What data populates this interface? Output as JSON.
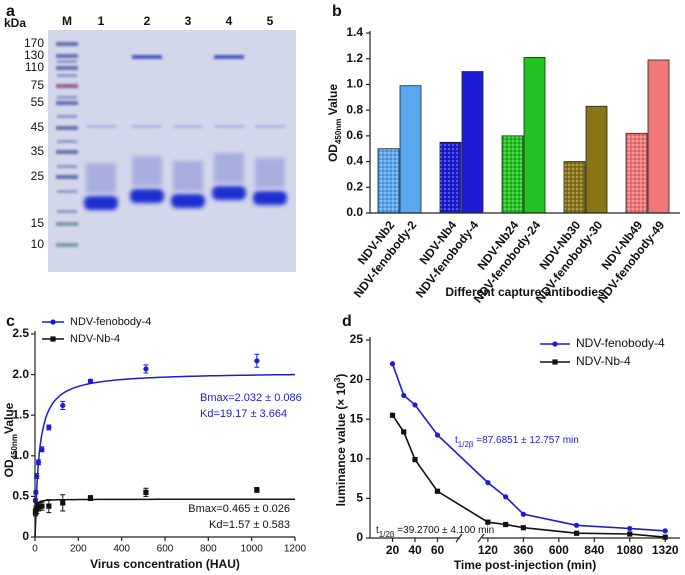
{
  "gel": {
    "panel": "a",
    "unit": "kDa",
    "lanes": [
      "M",
      "1",
      "2",
      "3",
      "4",
      "5"
    ],
    "markers": [
      "170",
      "130",
      "110",
      "75",
      "55",
      "45",
      "35",
      "25",
      "15",
      "10"
    ]
  },
  "chart_data": [
    {
      "panel": "b",
      "type": "bar",
      "categories": [
        "NDV-Nb2",
        "NDV-fenobody-2",
        "NDV-Nb4",
        "NDV-fenobody-4",
        "NDV-Nb24",
        "NDV-fenobody-24",
        "NDV-Nb30",
        "NDV-fenobody-30",
        "NDV-Nb49",
        "NDV-fenobody-49"
      ],
      "values": [
        0.5,
        0.99,
        0.55,
        1.1,
        0.6,
        1.21,
        0.4,
        0.83,
        0.62,
        1.19
      ],
      "colors": [
        "#5aa8f0",
        "#5aa8f0",
        "#1c1cd6",
        "#1c1cd6",
        "#22c322",
        "#22c322",
        "#8a7618",
        "#8a7618",
        "#f07878",
        "#f07878"
      ],
      "hatched": [
        true,
        false,
        true,
        false,
        true,
        false,
        true,
        false,
        true,
        false
      ],
      "ylabel": {
        "main": "OD",
        "sub": "450nm",
        "rest": " Value"
      },
      "xlabel": "Different capture antibodies",
      "ylim": [
        0,
        1.4
      ],
      "yticks": [
        {
          "value": 0,
          "label": "0.0"
        },
        0.2,
        0.4,
        0.6,
        0.8,
        {
          "value": 1,
          "label": "1.0"
        },
        1.2,
        1.4
      ]
    },
    {
      "panel": "c",
      "type": "scatter",
      "series": [
        {
          "name": "NDV-fenobody-4",
          "color": "#1c1cd6",
          "marker": "circle",
          "x": [
            2,
            4,
            8,
            16,
            32,
            64,
            128,
            256,
            512,
            1024
          ],
          "values": [
            0.45,
            0.55,
            0.75,
            0.92,
            1.08,
            1.35,
            1.62,
            1.92,
            2.07,
            2.17
          ],
          "errors": [
            0.02,
            0.02,
            0.03,
            0.03,
            0.03,
            0.03,
            0.05,
            0.02,
            0.05,
            0.08
          ],
          "fit": {
            "bmax": 2.032,
            "kd": 19.17
          },
          "annotation": [
            "Bmax=2.032 ± 0.086",
            "Kd=19.17 ± 3.664"
          ]
        },
        {
          "name": "NDV-Nb-4",
          "color": "#111111",
          "marker": "square",
          "x": [
            2,
            4,
            8,
            16,
            32,
            64,
            128,
            256,
            512,
            1024
          ],
          "values": [
            0.3,
            0.33,
            0.35,
            0.37,
            0.38,
            0.38,
            0.42,
            0.48,
            0.55,
            0.58
          ],
          "errors": [
            0.04,
            0.05,
            0.06,
            0.05,
            0.05,
            0.08,
            0.1,
            0.03,
            0.05,
            0.03
          ],
          "fit": {
            "bmax": 0.465,
            "kd": 1.57
          },
          "annotation": [
            "Bmax=0.465 ± 0.026",
            "Kd=1.57 ± 0.583"
          ]
        }
      ],
      "ylabel": {
        "main": "OD",
        "sub": "450nm",
        "rest": "Value"
      },
      "xlabel": "Virus concentration (HAU)",
      "legend": "upper-left",
      "xlim": [
        0,
        1200
      ],
      "xticks": [
        0,
        200,
        400,
        600,
        800,
        1000,
        1200
      ],
      "ylim": [
        0,
        2.5
      ],
      "yticks": [
        0,
        0.5,
        {
          "value": 1,
          "label": "1.0"
        },
        1.5,
        {
          "value": 2,
          "label": "2.0"
        },
        2.5
      ]
    },
    {
      "panel": "d",
      "type": "line",
      "x": [
        20,
        30,
        40,
        60,
        120,
        240,
        360,
        720,
        1080,
        1320
      ],
      "series": [
        {
          "name": "NDV-fenobody-4",
          "color": "#1c1cd6",
          "marker": "circle",
          "values": [
            22,
            18,
            16.8,
            13,
            7.0,
            5.2,
            3.0,
            1.6,
            1.2,
            0.9
          ],
          "annotation": {
            "t": "t",
            "sub": "1/2β",
            "rest": " =87.6851 ± 12.757 min"
          }
        },
        {
          "name": "NDV-Nb-4",
          "color": "#111111",
          "marker": "square",
          "values": [
            15.5,
            13.4,
            9.9,
            5.9,
            2.0,
            1.7,
            1.3,
            0.6,
            0.5,
            0.1
          ],
          "annotation": {
            "t": "t",
            "sub": "1/2β",
            "rest": " =39.2700 ± 4.100 min"
          }
        }
      ],
      "ylabel": {
        "main": "luminance value (× 10",
        "sup": "3",
        "rest": ")"
      },
      "xlabel": "Time post-injection (min)",
      "legend": "upper-right",
      "xsegments": [
        [
          0,
          80
        ],
        [
          80,
          1420
        ]
      ],
      "xticks": [
        20,
        40,
        60,
        120,
        360,
        600,
        840,
        1080,
        1320
      ],
      "ylim": [
        0,
        25
      ],
      "yticks": [
        0,
        5,
        10,
        15,
        20,
        25
      ]
    }
  ]
}
